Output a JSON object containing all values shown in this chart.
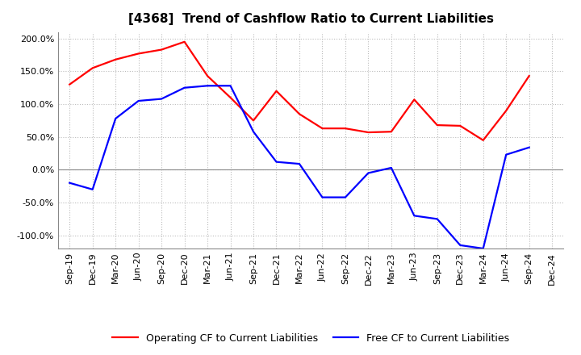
{
  "title": "[4368]  Trend of Cashflow Ratio to Current Liabilities",
  "x_labels": [
    "Sep-19",
    "Dec-19",
    "Mar-20",
    "Jun-20",
    "Sep-20",
    "Dec-20",
    "Mar-21",
    "Jun-21",
    "Sep-21",
    "Dec-21",
    "Mar-22",
    "Jun-22",
    "Sep-22",
    "Dec-22",
    "Mar-23",
    "Jun-23",
    "Sep-23",
    "Dec-23",
    "Mar-24",
    "Jun-24",
    "Sep-24",
    "Dec-24"
  ],
  "operating_cf": [
    130,
    155,
    168,
    177,
    183,
    195,
    143,
    110,
    75,
    120,
    85,
    63,
    63,
    57,
    58,
    107,
    68,
    67,
    45,
    90,
    143,
    null
  ],
  "free_cf": [
    -20,
    -30,
    78,
    105,
    108,
    125,
    128,
    128,
    58,
    12,
    9,
    -42,
    -42,
    -5,
    3,
    -70,
    -75,
    -115,
    -120,
    23,
    34,
    null
  ],
  "ylim": [
    -120,
    210
  ],
  "operating_color": "#FF0000",
  "free_color": "#0000FF",
  "bg_color": "#FFFFFF",
  "grid_color": "#BBBBBB",
  "legend_op": "Operating CF to Current Liabilities",
  "legend_free": "Free CF to Current Liabilities",
  "title_fontsize": 11,
  "label_fontsize": 8,
  "legend_fontsize": 9
}
